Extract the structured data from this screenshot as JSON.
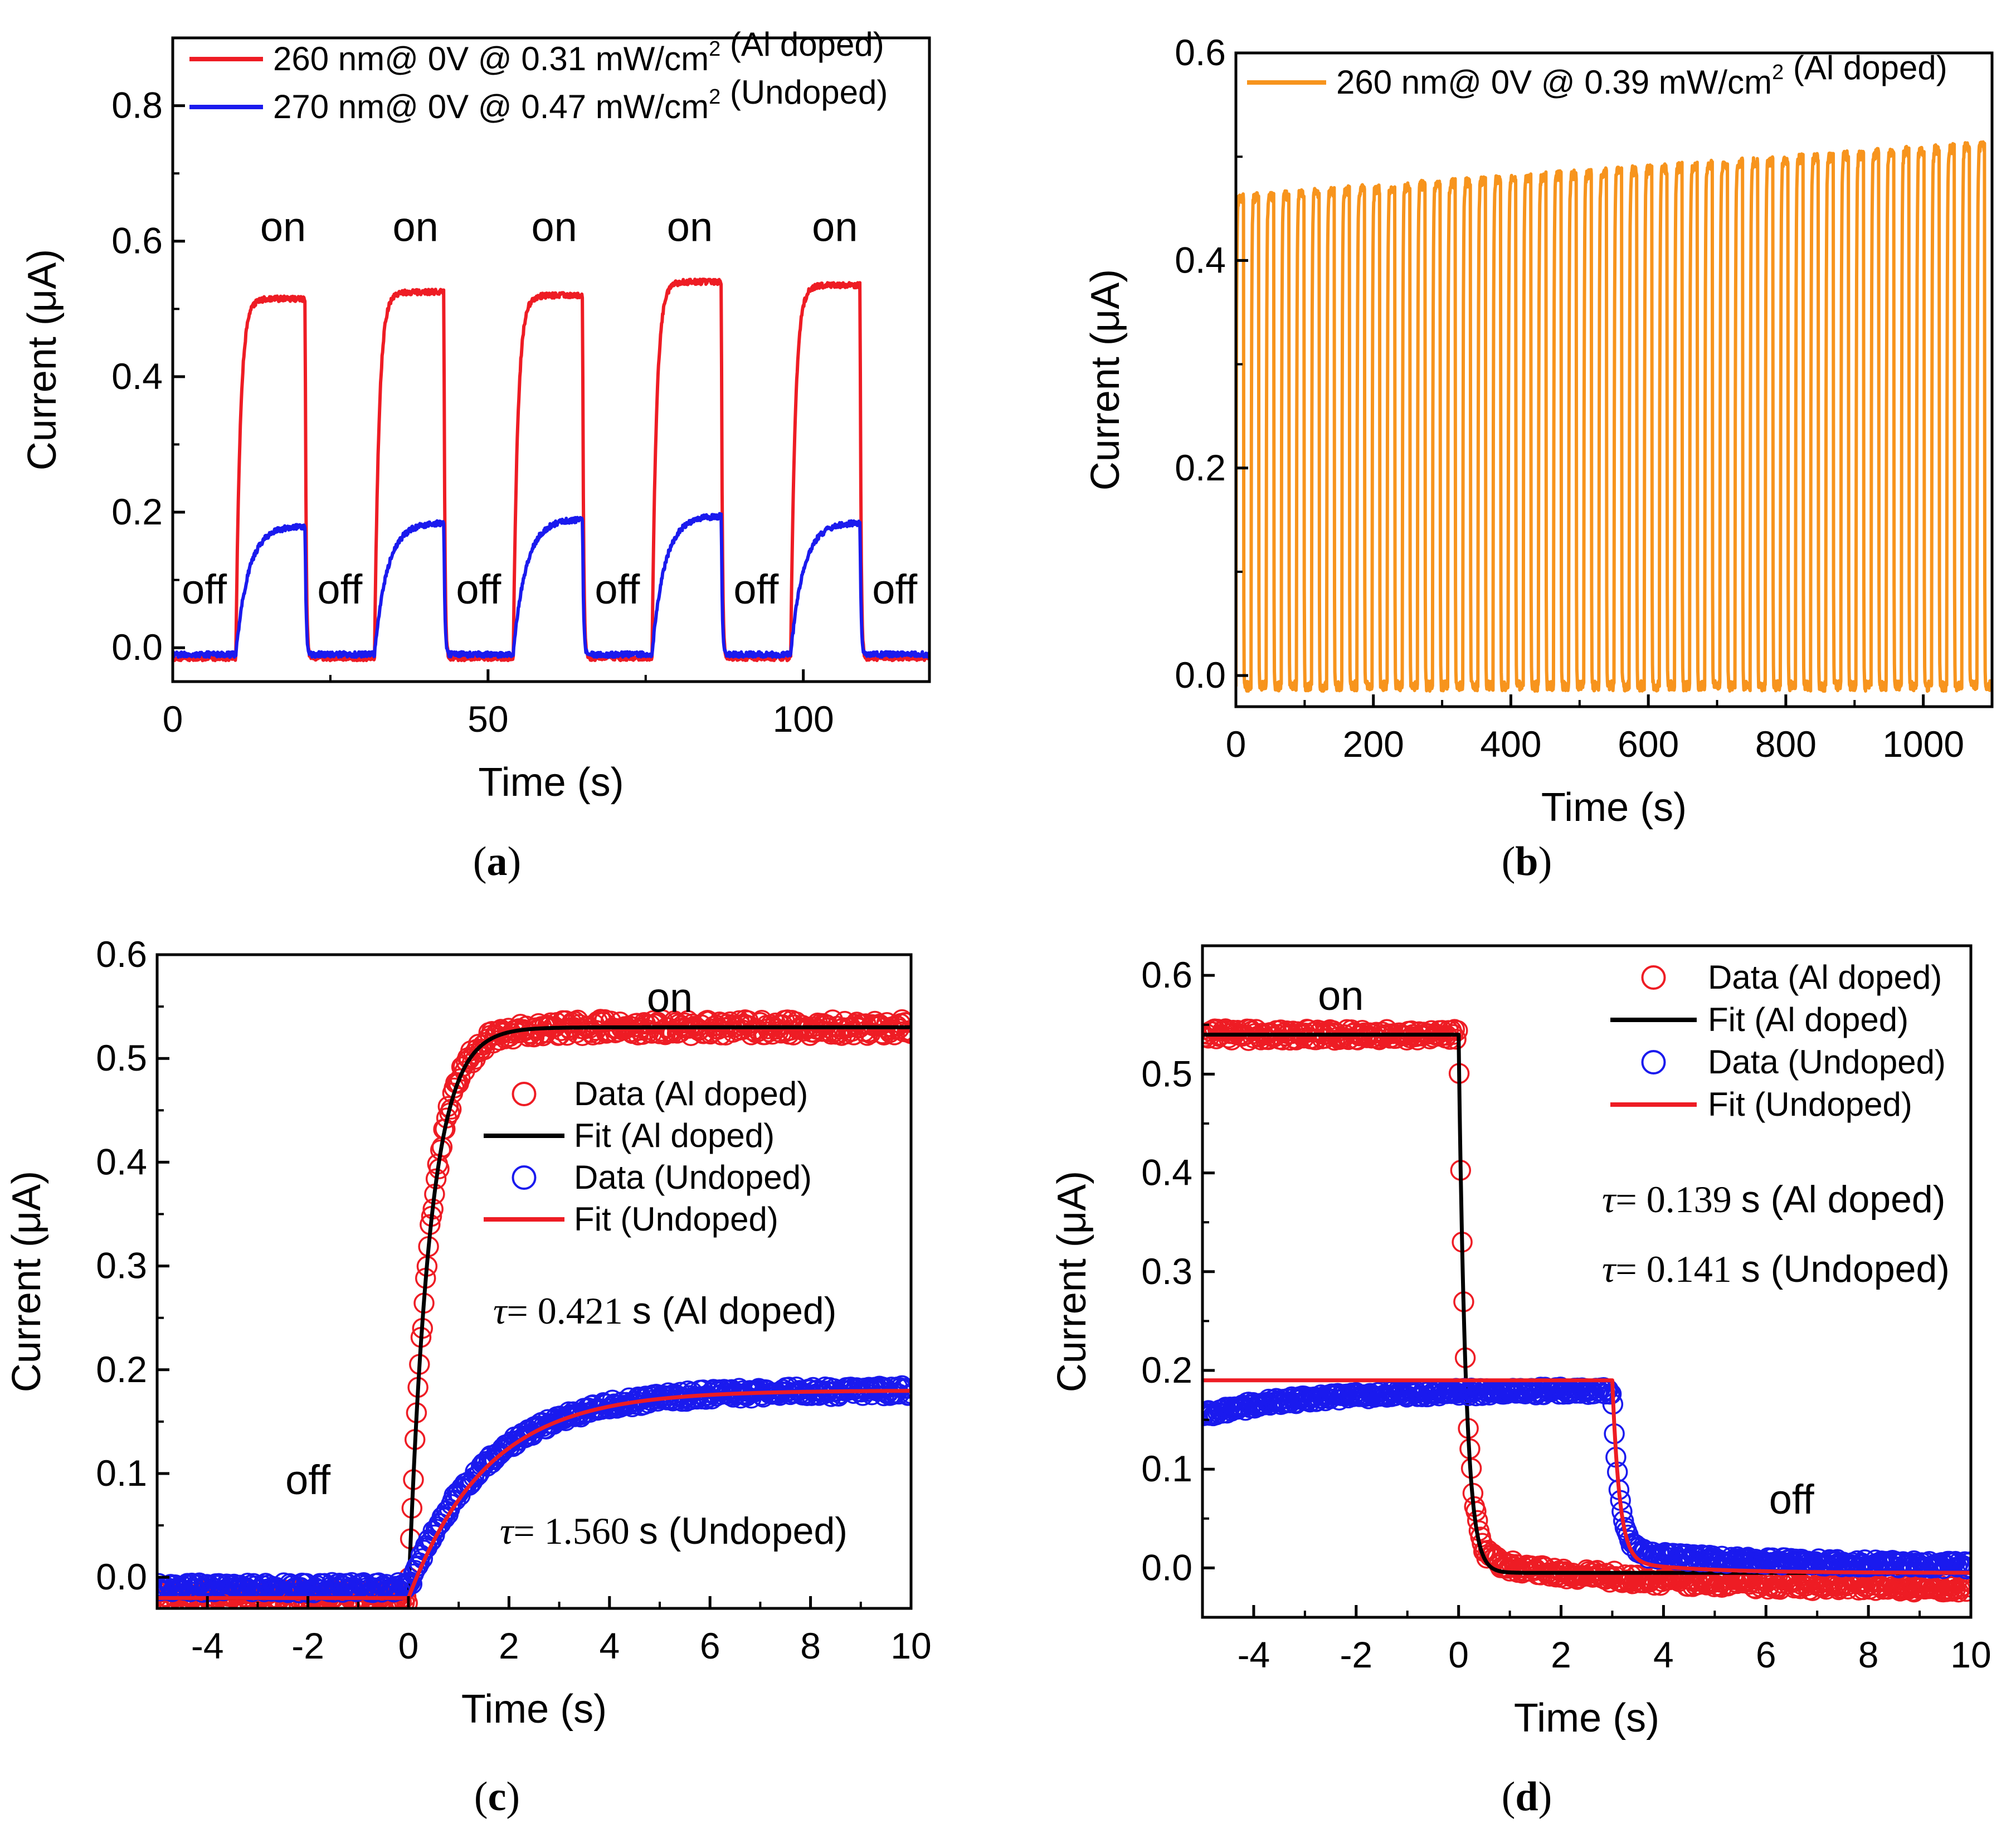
{
  "colors": {
    "red": "#ee1c24",
    "blue": "#1a1aee",
    "orange": "#f7941d",
    "black": "#000000"
  },
  "chart_data": [
    {
      "id": "a",
      "caption": "a",
      "type": "line",
      "xlabel": "Time (s)",
      "ylabel": "Current (μA)",
      "xlim": [
        0,
        120
      ],
      "ylim": [
        -0.05,
        0.9
      ],
      "xticks": [
        0,
        50,
        100
      ],
      "yticks": [
        0.0,
        0.2,
        0.4,
        0.6,
        0.8
      ],
      "xtick_labels": [
        "0",
        "50",
        "100"
      ],
      "ytick_labels": [
        "0.0",
        "0.2",
        "0.4",
        "0.6",
        "0.8"
      ],
      "legend": [
        "260 nm@ 0V  @ 0.31 mW/cm² (Al doped)",
        "270 nm@ 0V  @ 0.47 mW/cm²  (Undoped)"
      ],
      "series": [
        {
          "name": "260 nm@ 0V  @ 0.31 mW/cm² (Al doped)",
          "color": "red",
          "style": "square-pulse",
          "on_intervals": [
            [
              10,
              21
            ],
            [
              32,
              43
            ],
            [
              54,
              65
            ],
            [
              76,
              87
            ],
            [
              98,
              109
            ]
          ],
          "on_levels": [
            0.515,
            0.525,
            0.52,
            0.54,
            0.535
          ],
          "off_level": -0.015,
          "tau_rise": 0.7,
          "tau_fall": 0.15
        },
        {
          "name": "270 nm@ 0V  @ 0.47 mW/cm²  (Undoped)",
          "color": "blue",
          "style": "square-pulse",
          "on_intervals": [
            [
              10,
              21
            ],
            [
              32,
              43
            ],
            [
              54,
              65
            ],
            [
              76,
              87
            ],
            [
              98,
              109
            ]
          ],
          "on_levels": [
            0.18,
            0.185,
            0.19,
            0.195,
            0.185
          ],
          "off_level": -0.01,
          "tau_rise": 2.0,
          "tau_fall": 0.15
        }
      ],
      "annotations": [
        {
          "text": "on",
          "x": 17.5,
          "y": 0.6
        },
        {
          "text": "on",
          "x": 38.5,
          "y": 0.6
        },
        {
          "text": "on",
          "x": 60.5,
          "y": 0.6
        },
        {
          "text": "on",
          "x": 82,
          "y": 0.6
        },
        {
          "text": "on",
          "x": 105,
          "y": 0.6
        },
        {
          "text": "off",
          "x": 5,
          "y": 0.065
        },
        {
          "text": "off",
          "x": 26.5,
          "y": 0.065
        },
        {
          "text": "off",
          "x": 48.5,
          "y": 0.065
        },
        {
          "text": "off",
          "x": 70.5,
          "y": 0.065
        },
        {
          "text": "off",
          "x": 92.5,
          "y": 0.065
        },
        {
          "text": "off",
          "x": 114.5,
          "y": 0.065
        }
      ]
    },
    {
      "id": "b",
      "caption": "b",
      "type": "line",
      "xlabel": "Time (s)",
      "ylabel": "Current (μA)",
      "xlim": [
        0,
        1100
      ],
      "ylim": [
        -0.03,
        0.6
      ],
      "xticks": [
        0,
        200,
        400,
        600,
        800,
        1000
      ],
      "yticks": [
        0.0,
        0.2,
        0.4,
        0.6
      ],
      "xtick_labels": [
        "0",
        "200",
        "400",
        "600",
        "800",
        "1000"
      ],
      "ytick_labels": [
        "0.0",
        "0.2",
        "0.4",
        "0.6"
      ],
      "legend": [
        "260 nm@ 0V  @ 0.39 mW/cm² (Al doped)"
      ],
      "series": [
        {
          "name": "260 nm@ 0V  @ 0.39 mW/cm² (Al doped)",
          "color": "orange",
          "style": "periodic-pulse",
          "period": 22,
          "start": 0,
          "cycles": 50,
          "on_start_level": 0.46,
          "on_end_level": 0.51,
          "off_level": -0.01
        }
      ],
      "annotations": []
    },
    {
      "id": "c",
      "caption": "c",
      "type": "scatter+line",
      "xlabel": "Time (s)",
      "ylabel": "Current (μA)",
      "xlim": [
        -5,
        10
      ],
      "ylim": [
        -0.03,
        0.6
      ],
      "xticks": [
        -4,
        -2,
        0,
        2,
        4,
        6,
        8,
        10
      ],
      "yticks": [
        0.0,
        0.1,
        0.2,
        0.3,
        0.4,
        0.5,
        0.6
      ],
      "xtick_labels": [
        "-4",
        "-2",
        "0",
        "2",
        "4",
        "6",
        "8",
        "10"
      ],
      "ytick_labels": [
        "0.0",
        "0.1",
        "0.2",
        "0.3",
        "0.4",
        "0.5",
        "0.6"
      ],
      "legend": [
        "Data (Al doped)",
        "Fit (Al doped)",
        "Data (Undoped)",
        "Fit (Undoped)"
      ],
      "series": [
        {
          "name": "Data (Al doped)",
          "kind": "markers",
          "color": "red",
          "model": "rise",
          "base": -0.02,
          "plateau": 0.53,
          "tau": 0.421,
          "t0": 0,
          "noise": 0.008
        },
        {
          "name": "Fit (Al doped)",
          "kind": "line",
          "color": "black",
          "model": "rise",
          "base": -0.02,
          "plateau": 0.53,
          "tau": 0.421,
          "t0": 0
        },
        {
          "name": "Data (Undoped)",
          "kind": "markers",
          "color": "blue",
          "model": "rise",
          "base": -0.01,
          "plateau": 0.18,
          "tau": 1.56,
          "t0": 0,
          "noise": 0.005
        },
        {
          "name": "Fit (Undoped)",
          "kind": "line",
          "color": "red",
          "model": "rise",
          "base": -0.02,
          "plateau": 0.18,
          "tau": 1.56,
          "t0": 0
        }
      ],
      "tau_labels": [
        {
          "symbol": "τ",
          "value": "= 0.421",
          "unit": "s",
          "suffix": "(Al doped)"
        },
        {
          "symbol": "τ",
          "value": "= 1.560",
          "unit": "s",
          "suffix": "(Undoped)"
        }
      ],
      "annotations": [
        {
          "text": "on",
          "x": 5.2,
          "y": 0.545
        },
        {
          "text": "off",
          "x": -2.0,
          "y": 0.08
        }
      ]
    },
    {
      "id": "d",
      "caption": "d",
      "type": "scatter+line",
      "xlabel": "Time (s)",
      "ylabel": "Current (μA)",
      "xlim": [
        -5,
        10
      ],
      "ylim": [
        -0.05,
        0.63
      ],
      "xticks": [
        -4,
        -2,
        0,
        2,
        4,
        6,
        8,
        10
      ],
      "yticks": [
        0.0,
        0.1,
        0.2,
        0.3,
        0.4,
        0.5,
        0.6
      ],
      "xtick_labels": [
        "-4",
        "-2",
        "0",
        "2",
        "4",
        "6",
        "8",
        "10"
      ],
      "ytick_labels": [
        "0.0",
        "0.1",
        "0.2",
        "0.3",
        "0.4",
        "0.5",
        "0.6"
      ],
      "legend": [
        "Data (Al doped)",
        "Fit (Al doped)",
        "Data (Undoped)",
        "Fit (Undoped)"
      ],
      "series": [
        {
          "name": "Data (Al doped)",
          "kind": "markers",
          "color": "red",
          "model": "decay",
          "before": 0.54,
          "after": -0.02,
          "slow_amp": 0.03,
          "slow_tau": 3.0,
          "tau": 0.139,
          "t0": 0,
          "noise": 0.006
        },
        {
          "name": "Fit (Al doped)",
          "kind": "line",
          "color": "black",
          "model": "decay",
          "before": 0.54,
          "after": -0.005,
          "slow_amp": 0.0,
          "slow_tau": 3.0,
          "tau": 0.139,
          "t0": 0
        },
        {
          "name": "Data (Undoped)",
          "kind": "markers",
          "color": "blue",
          "model": "decay",
          "before_start": 0.155,
          "before": 0.18,
          "after": 0.0,
          "slow_amp": 0.015,
          "slow_tau": 4.0,
          "tau": 0.141,
          "t0": 3.0,
          "noise": 0.004
        },
        {
          "name": "Fit (Undoped)",
          "kind": "line",
          "color": "red",
          "model": "decay",
          "before": 0.19,
          "after": -0.005,
          "slow_amp": 0.012,
          "slow_tau": 1.5,
          "tau": 0.141,
          "t0": 3.0
        }
      ],
      "tau_labels": [
        {
          "symbol": "τ",
          "value": "= 0.139",
          "unit": "s",
          "suffix": "(Al doped)"
        },
        {
          "symbol": "τ",
          "value": "= 0.141",
          "unit": "s",
          "suffix": "(Undoped)"
        }
      ],
      "annotations": [
        {
          "text": "on",
          "x": -2.3,
          "y": 0.565
        },
        {
          "text": "off",
          "x": 6.5,
          "y": 0.055
        }
      ]
    }
  ]
}
